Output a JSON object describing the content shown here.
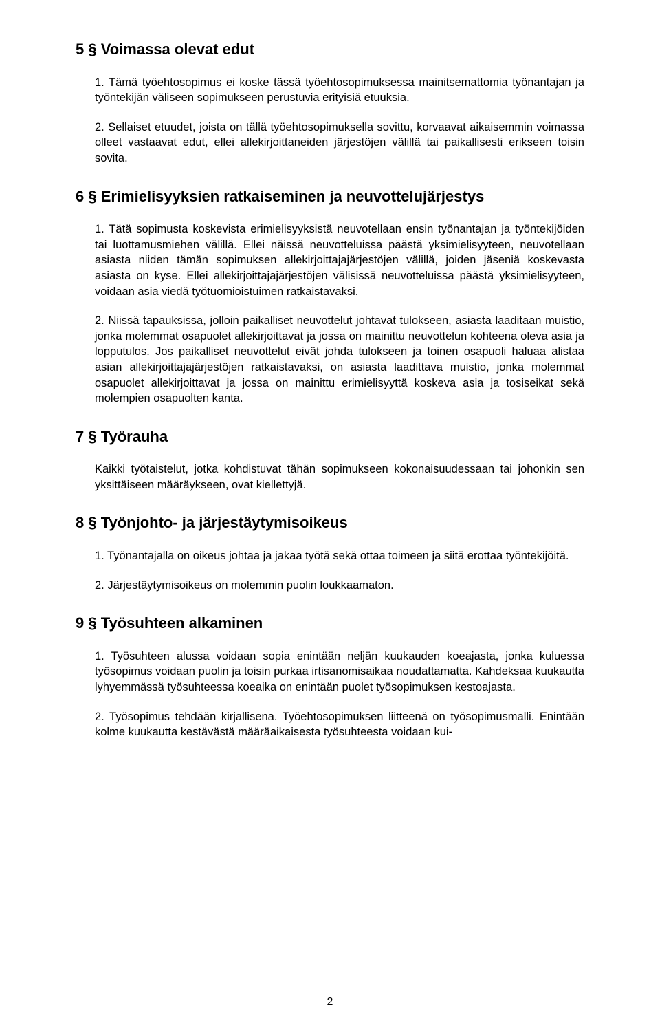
{
  "page": {
    "number": "2"
  },
  "sections": {
    "s5": {
      "title": "5 § Voimassa olevat edut",
      "p1": "1. Tämä työehtosopimus ei koske tässä työehtosopimuksessa mainitsemattomia työnantajan ja työntekijän väliseen sopimukseen perustuvia erityisiä etuuksia.",
      "p2": "2. Sellaiset etuudet, joista on tällä työehtosopimuksella sovittu, korvaavat aikaisemmin voimassa olleet vastaavat edut, ellei allekirjoittaneiden järjestöjen välillä tai paikallisesti erikseen toisin sovita."
    },
    "s6": {
      "title": "6 § Erimielisyyksien ratkaiseminen ja neuvottelujärjestys",
      "p1": "1. Tätä sopimusta koskevista erimielisyyksistä neuvotellaan ensin työnantajan ja työntekijöiden tai luottamusmiehen välillä. Ellei näissä neuvotteluissa päästä yksimielisyyteen, neuvotellaan asiasta niiden tämän sopimuksen allekirjoittajajärjestöjen välillä, joiden jäseniä koskevasta asiasta on kyse. Ellei allekirjoittajajärjestöjen välisissä neuvotteluissa päästä yksimielisyyteen, voidaan asia viedä työtuomioistuimen ratkaistavaksi.",
      "p2": "2. Niissä tapauksissa, jolloin paikalliset neuvottelut johtavat tulokseen, asiasta laaditaan muistio, jonka molemmat osapuolet allekirjoittavat ja jossa on mainittu neuvottelun kohteena oleva asia ja lopputulos. Jos paikalliset neuvottelut eivät johda tulokseen ja toinen osapuoli haluaa alistaa asian allekirjoittajajärjestöjen ratkaistavaksi, on asiasta laadittava muistio, jonka molemmat osapuolet allekirjoittavat ja jossa on mainittu erimielisyyttä koskeva asia ja tosiseikat sekä molempien osapuolten kanta."
    },
    "s7": {
      "title": "7 § Työrauha",
      "p1": "Kaikki työtaistelut, jotka kohdistuvat tähän sopimukseen kokonaisuudessaan tai johonkin sen yksittäiseen määräykseen, ovat kiellettyjä."
    },
    "s8": {
      "title": "8 § Työnjohto- ja järjestäytymisoikeus",
      "p1": "1. Työnantajalla on oikeus johtaa ja jakaa työtä sekä ottaa toimeen ja siitä erottaa työntekijöitä.",
      "p2": "2. Järjestäytymisoikeus on molemmin puolin loukkaamaton."
    },
    "s9": {
      "title": "9 § Työsuhteen alkaminen",
      "p1": "1. Työsuhteen alussa voidaan sopia enintään neljän kuukauden koeajasta, jonka kuluessa työsopimus voidaan puolin ja toisin purkaa irtisanomisaikaa noudattamatta. Kahdeksaa kuukautta lyhyemmässä työsuhteessa koeaika on enintään puolet työsopimuksen kestoajasta.",
      "p2": "2. Työsopimus tehdään kirjallisena. Työehtosopimuksen liitteenä on työsopimusmalli. Enintään kolme kuukautta kestävästä määräaikaisesta työsuhteesta voidaan kui-"
    }
  }
}
